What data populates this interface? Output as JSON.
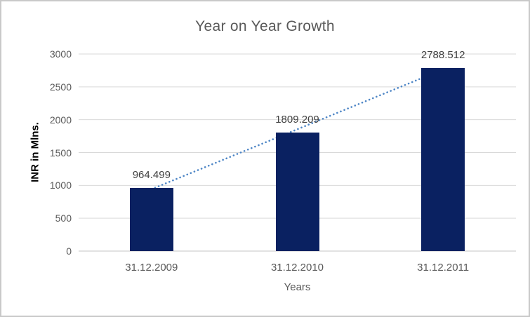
{
  "chart_data": {
    "type": "bar",
    "title": "Year on Year Growth",
    "categories": [
      "31.12.2009",
      "31.12.2010",
      "31.12.2011"
    ],
    "values": [
      964.499,
      1809.209,
      2788.512
    ],
    "data_labels": [
      "964.499",
      "1809.209",
      "2788.512"
    ],
    "xlabel": "Years",
    "ylabel": "INR in Mlns.",
    "ylim": [
      0,
      3000
    ],
    "yticks": [
      0,
      500,
      1000,
      1500,
      2000,
      2500,
      3000
    ],
    "grid": true,
    "legend": "none",
    "trendline": {
      "type": "linear",
      "style": "dotted",
      "color": "#4e86c6"
    },
    "colors": {
      "bar": "#0a2161",
      "grid": "#d9d9d9",
      "axis_line": "#c6c6c6",
      "title_text": "#595959",
      "tick_text": "#595959",
      "data_label_text": "#404040",
      "axis_title_text": "#000000"
    }
  }
}
